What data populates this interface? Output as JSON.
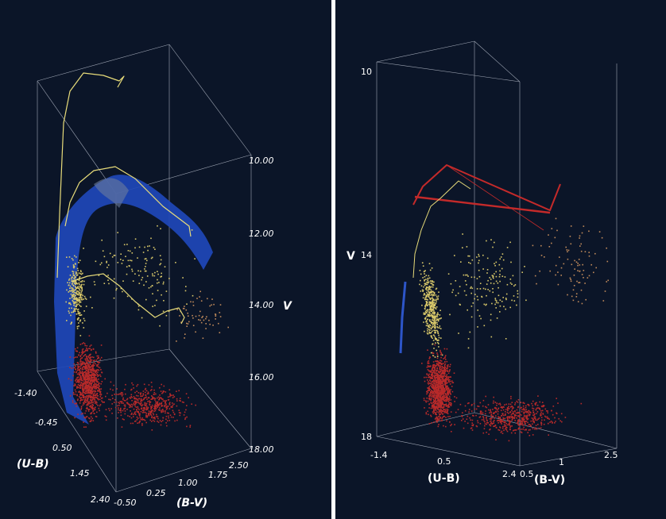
{
  "colors": {
    "background": "#0b1528",
    "divider": "#ffffff",
    "box_edges": "#9fa6b4",
    "giant_stars": "#d9c96a",
    "main_sequence_stars": "#b82a2a",
    "isochrone_track": "#e8dc7a",
    "ms_envelope_surface": "#1f48b8",
    "red_track": "#c42a2a",
    "blue_track": "#2d55c8"
  },
  "chart_data": [
    {
      "panel": "left",
      "type": "scatter",
      "view": "3d color-color-magnitude diagram",
      "axes": {
        "x": {
          "label": "(B-V)",
          "ticks": [
            "-0.50",
            "0.25",
            "1.00",
            "1.75",
            "2.50"
          ],
          "range": [
            -0.5,
            2.5
          ]
        },
        "y": {
          "label": "(U-B)",
          "ticks": [
            "-1.40",
            "-0.45",
            "0.50",
            "1.45",
            "2.40"
          ],
          "range": [
            -1.4,
            2.4
          ]
        },
        "z": {
          "label": "V",
          "ticks": [
            "10.00",
            "12.00",
            "14.00",
            "16.00",
            "18.00"
          ],
          "range": [
            10,
            18
          ],
          "inverted": true
        }
      },
      "series": [],
      "elements": [
        "star points",
        "isochrone tracks",
        "main-sequence envelope surface"
      ]
    },
    {
      "panel": "right",
      "type": "scatter",
      "view": "3d color-color-magnitude diagram, rotated",
      "axes": {
        "x": {
          "label": "(B-V)",
          "ticks": [
            "0.5",
            "1",
            "2.5"
          ],
          "range": [
            0.5,
            2.5
          ]
        },
        "y": {
          "label": "(U-B)",
          "ticks": [
            "-1.4",
            "0.5",
            "2.4"
          ],
          "range": [
            -1.4,
            2.4
          ]
        },
        "z": {
          "label": "V",
          "ticks": [
            "10",
            "14",
            "18"
          ],
          "range": [
            10,
            18
          ],
          "inverted": true
        }
      },
      "series": [],
      "elements": [
        "star points",
        "isochrone tracks"
      ]
    }
  ]
}
